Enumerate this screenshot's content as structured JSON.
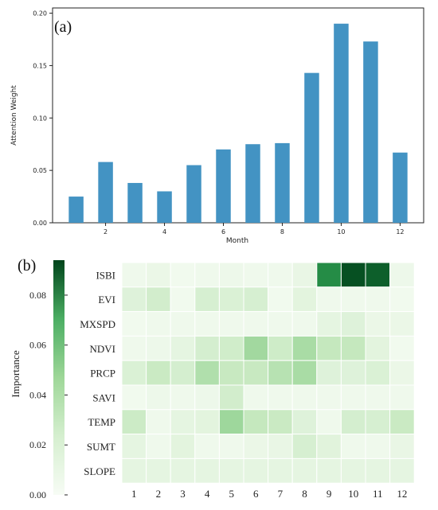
{
  "chart_data": [
    {
      "type": "bar",
      "panel_label": "(a)",
      "xlabel": "Month",
      "ylabel": "Attention Weight",
      "x": [
        1,
        2,
        3,
        4,
        5,
        6,
        7,
        8,
        9,
        10,
        11,
        12
      ],
      "values": [
        0.025,
        0.058,
        0.038,
        0.03,
        0.055,
        0.07,
        0.075,
        0.076,
        0.143,
        0.19,
        0.173,
        0.067
      ],
      "xticks": [
        "2",
        "4",
        "6",
        "8",
        "10",
        "12"
      ],
      "yticks": [
        "0.00",
        "0.05",
        "0.10",
        "0.15",
        "0.20"
      ],
      "ylim": [
        0,
        0.205
      ],
      "bar_color": "#4393c3",
      "grid": false
    },
    {
      "type": "heatmap",
      "panel_label": "(b)",
      "rows": [
        "ISBI",
        "EVI",
        "MXSPD",
        "NDVI",
        "PRCP",
        "SAVI",
        "TEMP",
        "SUMT",
        "SLOPE"
      ],
      "columns": [
        "1",
        "2",
        "3",
        "4",
        "5",
        "6",
        "7",
        "8",
        "9",
        "10",
        "11",
        "12"
      ],
      "values": [
        [
          0.004,
          0.006,
          0.003,
          0.004,
          0.005,
          0.004,
          0.004,
          0.007,
          0.07,
          0.09,
          0.085,
          0.005
        ],
        [
          0.012,
          0.018,
          0.003,
          0.016,
          0.014,
          0.016,
          0.003,
          0.01,
          0.004,
          0.004,
          0.004,
          0.003
        ],
        [
          0.003,
          0.004,
          0.004,
          0.004,
          0.004,
          0.004,
          0.004,
          0.004,
          0.009,
          0.012,
          0.006,
          0.006
        ],
        [
          0.004,
          0.005,
          0.009,
          0.017,
          0.019,
          0.034,
          0.02,
          0.032,
          0.024,
          0.024,
          0.01,
          0.003
        ],
        [
          0.014,
          0.022,
          0.017,
          0.03,
          0.023,
          0.023,
          0.028,
          0.032,
          0.012,
          0.012,
          0.014,
          0.006
        ],
        [
          0.003,
          0.005,
          0.004,
          0.005,
          0.018,
          0.004,
          0.004,
          0.004,
          0.004,
          0.004,
          0.004,
          0.004
        ],
        [
          0.021,
          0.004,
          0.009,
          0.01,
          0.035,
          0.024,
          0.022,
          0.012,
          0.004,
          0.017,
          0.016,
          0.022
        ],
        [
          0.009,
          0.004,
          0.01,
          0.004,
          0.004,
          0.006,
          0.007,
          0.016,
          0.011,
          0.004,
          0.004,
          0.007
        ],
        [
          0.009,
          0.009,
          0.009,
          0.009,
          0.009,
          0.009,
          0.009,
          0.009,
          0.009,
          0.009,
          0.009,
          0.009
        ]
      ],
      "colorbar": {
        "label": "Importance",
        "ticks": [
          "0.00",
          "0.02",
          "0.04",
          "0.06",
          "0.08"
        ],
        "range": [
          0,
          0.094
        ],
        "colors": [
          "#f7fcf5",
          "#00441b"
        ]
      }
    }
  ]
}
